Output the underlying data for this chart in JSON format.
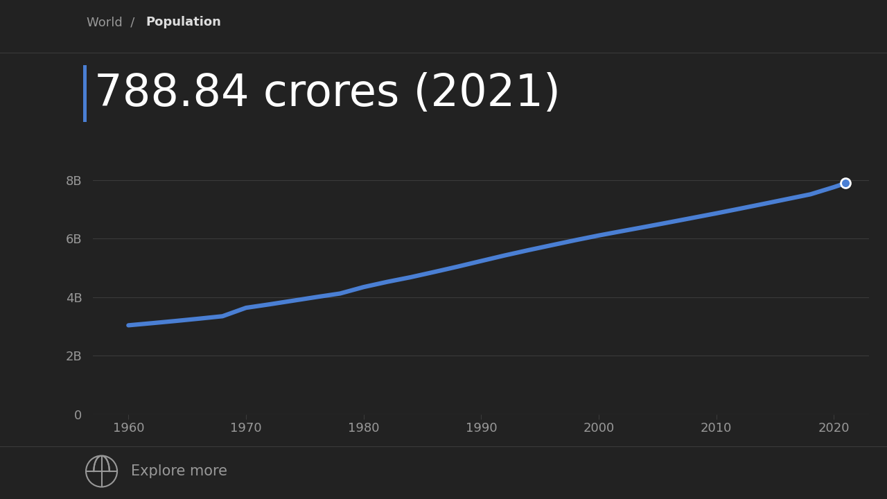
{
  "title_breadcrumb_light": "World  /  ",
  "title_breadcrumb_bold": "Population",
  "main_value": "788.84 crores (2021)",
  "background_color": "#222222",
  "text_color_main": "#ffffff",
  "text_color_dim": "#999999",
  "text_color_breadcrumb_light": "#999999",
  "text_color_breadcrumb_bold": "#dddddd",
  "line_color": "#4a7fd4",
  "marker_color": "#4a7fd4",
  "accent_bar_color": "#4a7fd4",
  "grid_color": "#3a3a3a",
  "years": [
    1960,
    1962,
    1964,
    1966,
    1968,
    1970,
    1972,
    1974,
    1976,
    1978,
    1980,
    1982,
    1984,
    1986,
    1988,
    1990,
    1992,
    1994,
    1996,
    1998,
    2000,
    2002,
    2004,
    2006,
    2008,
    2010,
    2012,
    2014,
    2016,
    2018,
    2020,
    2021
  ],
  "population": [
    3034000000.0,
    3107000000.0,
    3182000000.0,
    3261000000.0,
    3344000000.0,
    3632000000.0,
    3750000000.0,
    3875000000.0,
    4000000000.0,
    4120000000.0,
    4340000000.0,
    4517000000.0,
    4676000000.0,
    4855000000.0,
    5038000000.0,
    5230000000.0,
    5420000000.0,
    5599000000.0,
    5770000000.0,
    5940000000.0,
    6102000000.0,
    6252000000.0,
    6400000000.0,
    6551000000.0,
    6704000000.0,
    6858000000.0,
    7017000000.0,
    7179000000.0,
    7343000000.0,
    7507000000.0,
    7753000000.0,
    7888000000.0
  ],
  "xlim": [
    1957,
    2023
  ],
  "ylim": [
    0,
    9200000000.0
  ],
  "yticks": [
    0,
    2000000000,
    4000000000,
    6000000000,
    8000000000
  ],
  "ytick_labels": [
    "0",
    "2B",
    "4B",
    "6B",
    "8B"
  ],
  "xticks": [
    1960,
    1970,
    1980,
    1990,
    2000,
    2010,
    2020
  ],
  "explore_text": "Explore more",
  "left_bar_color": "#4a7fd4",
  "marker_size": 10,
  "line_width": 4.5
}
